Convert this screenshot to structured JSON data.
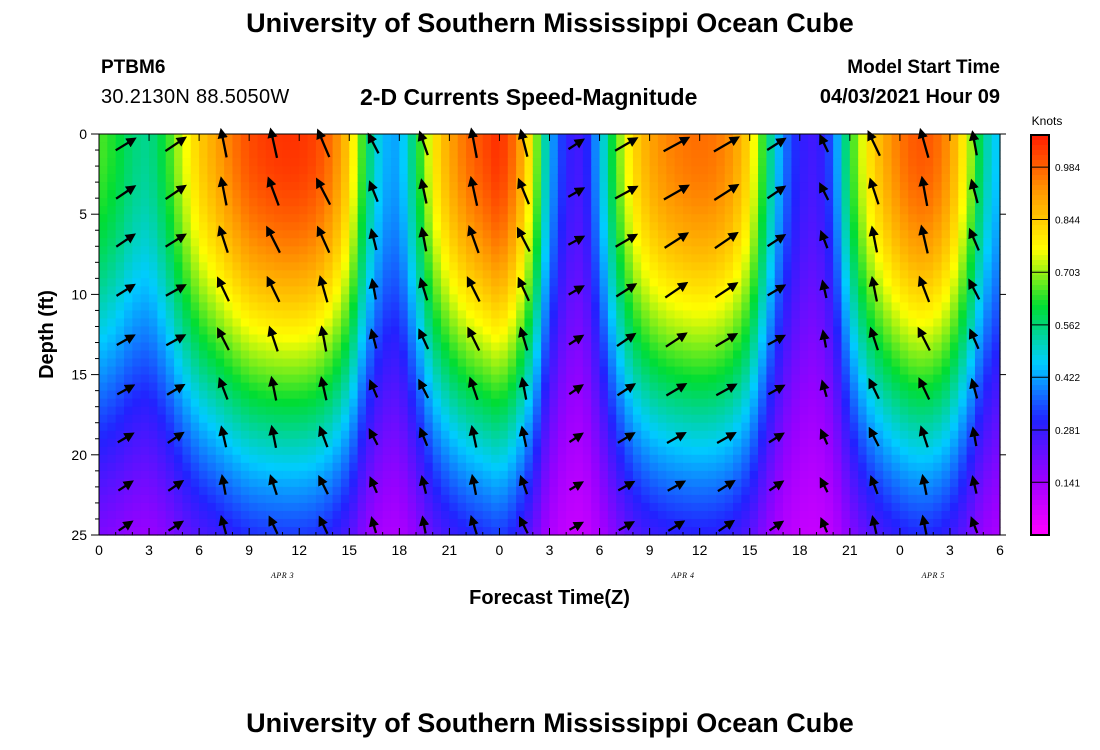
{
  "page": {
    "title_top": "University of Southern Mississippi Ocean Cube",
    "title_bottom": "University of Southern Mississippi Ocean Cube",
    "station_id": "PTBM6",
    "coordinates": "30.2130N  88.5050W",
    "subtitle": "2-D Currents Speed-Magnitude",
    "model_start_label": "Model Start Time",
    "model_start_time": "04/03/2021 Hour 09"
  },
  "chart_data": {
    "type": "heatmap",
    "title": "2-D Currents Speed-Magnitude",
    "xlabel": "Forecast Time(Z)",
    "ylabel": "Depth (ft)",
    "x_tick_labels": [
      "0",
      "3",
      "6",
      "9",
      "12",
      "15",
      "18",
      "21",
      "0",
      "3",
      "6",
      "9",
      "12",
      "15",
      "18",
      "21",
      "0",
      "3",
      "6"
    ],
    "x_range_hours": [
      0,
      54
    ],
    "date_labels": [
      {
        "text": "APR 3",
        "hour": 11
      },
      {
        "text": "APR 4",
        "hour": 35
      },
      {
        "text": "APR 5",
        "hour": 50
      }
    ],
    "y_ticks": [
      0,
      5,
      10,
      15,
      20,
      25
    ],
    "ylim": [
      25,
      0
    ],
    "colorbar": {
      "label": "Knots",
      "tick_labels": [
        "0.984",
        "0.844",
        "0.703",
        "0.562",
        "0.422",
        "0.281",
        "0.141"
      ],
      "range": [
        0,
        1.07
      ],
      "colors": [
        "#ff00ff",
        "#9900ff",
        "#2222ff",
        "#00ccff",
        "#00dd33",
        "#ffff00",
        "#ff9900",
        "#ff1a00"
      ]
    },
    "speed_profile": {
      "hours": [
        0,
        1,
        2,
        3,
        4,
        5,
        6,
        7,
        8,
        9,
        10,
        11,
        12,
        13,
        14,
        15,
        16,
        17,
        18,
        19,
        20,
        21,
        22,
        23,
        24,
        25,
        26,
        27,
        28,
        29,
        30,
        31,
        32,
        33,
        34,
        35,
        36,
        37,
        38,
        39,
        40,
        41,
        42,
        43,
        44,
        45,
        46,
        47,
        48,
        49,
        50,
        51,
        52,
        53,
        54
      ],
      "surface_knots": [
        0.62,
        0.58,
        0.52,
        0.5,
        0.58,
        0.7,
        0.8,
        0.86,
        0.92,
        0.97,
        0.99,
        1.0,
        1.0,
        0.98,
        0.92,
        0.8,
        0.55,
        0.4,
        0.38,
        0.55,
        0.75,
        0.86,
        0.93,
        0.97,
        1.01,
        0.92,
        0.72,
        0.4,
        0.25,
        0.22,
        0.4,
        0.62,
        0.78,
        0.86,
        0.9,
        0.92,
        0.93,
        0.92,
        0.88,
        0.78,
        0.55,
        0.35,
        0.25,
        0.22,
        0.32,
        0.58,
        0.75,
        0.85,
        0.92,
        0.96,
        0.95,
        0.88,
        0.72,
        0.5,
        0.4
      ],
      "flow_sign": [
        1,
        1,
        1,
        1,
        1,
        1,
        -1,
        -1,
        -1,
        -1,
        -1,
        -1,
        -1,
        -1,
        -1,
        -1,
        -1,
        -1,
        -1,
        -1,
        -1,
        -1,
        -1,
        -1,
        -1,
        -1,
        -1,
        1,
        1,
        1,
        1,
        1,
        1,
        1,
        1,
        1,
        1,
        1,
        1,
        1,
        1,
        1,
        -1,
        -1,
        -1,
        -1,
        -1,
        -1,
        -1,
        -1,
        -1,
        -1,
        -1,
        -1,
        -1
      ],
      "decay_depth_ft": 15
    },
    "vector_times_hours": [
      1.5,
      4.5,
      7.5,
      10.5,
      13.5,
      16.5,
      19.5,
      22.5,
      25.5,
      28.5,
      31.5,
      34.5,
      37.5,
      40.5,
      43.5,
      46.5,
      49.5,
      52.5
    ],
    "vector_depths_ft": [
      0.7,
      3.7,
      6.7,
      9.8,
      12.9,
      16.0,
      19.0,
      22.0,
      24.5
    ]
  }
}
